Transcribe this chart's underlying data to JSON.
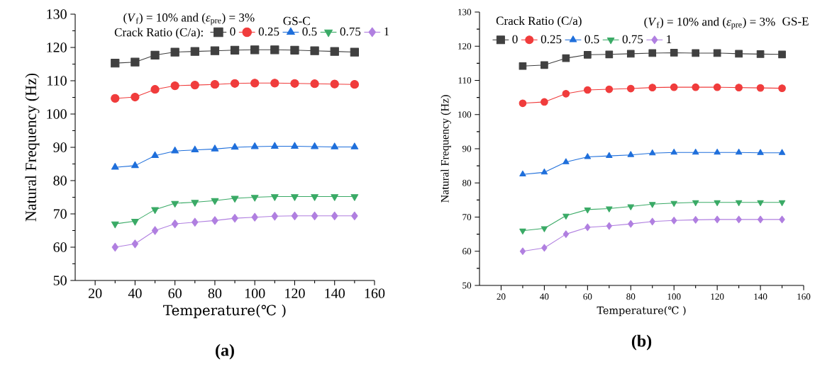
{
  "chart_data": [
    {
      "type": "line",
      "xlabel": "Temperature(℃ )",
      "ylabel": "Natural Frequency (Hz)",
      "legend_title": "Crack Ratio (C/a):",
      "legend": "top",
      "grid": false,
      "line_style": "solid",
      "annotations": [
        "(*V*$_{f}$) = 10%  and (*ε*$_{pre}$) = 3%",
        "GS-C",
        "**(a)**"
      ],
      "x": [
        30,
        40,
        50,
        60,
        70,
        80,
        90,
        100,
        110,
        120,
        130,
        140,
        150
      ],
      "xlim": [
        10,
        160
      ],
      "xticks": [
        20,
        40,
        60,
        80,
        100,
        120,
        140,
        160
      ],
      "ylim": [
        50,
        130
      ],
      "yticks": [
        50,
        60,
        70,
        80,
        90,
        100,
        110,
        120,
        130
      ],
      "series": [
        {
          "name": "0",
          "color": "#404040",
          "marker": "square",
          "values": [
            115.3,
            115.6,
            117.7,
            118.6,
            118.8,
            119.0,
            119.2,
            119.3,
            119.3,
            119.2,
            119.0,
            118.8,
            118.6
          ]
        },
        {
          "name": "0.25",
          "color": "#f03c3c",
          "marker": "circle",
          "values": [
            104.7,
            105.1,
            107.4,
            108.5,
            108.7,
            108.9,
            109.2,
            109.3,
            109.3,
            109.2,
            109.1,
            109.0,
            108.9
          ]
        },
        {
          "name": "0.5",
          "color": "#1f6fdb",
          "marker": "triangle",
          "values": [
            84.0,
            84.5,
            87.5,
            88.9,
            89.2,
            89.5,
            90.0,
            90.2,
            90.3,
            90.3,
            90.2,
            90.1,
            90.1
          ]
        },
        {
          "name": "0.75",
          "color": "#3aaa66",
          "marker": "triangle-down",
          "values": [
            67.0,
            67.8,
            71.3,
            73.2,
            73.5,
            74.0,
            74.7,
            75.0,
            75.2,
            75.2,
            75.2,
            75.2,
            75.2
          ]
        },
        {
          "name": "1",
          "color": "#b07fe0",
          "marker": "diamond",
          "values": [
            60.0,
            61.0,
            65.0,
            67.0,
            67.5,
            68.0,
            68.7,
            69.0,
            69.3,
            69.4,
            69.4,
            69.4,
            69.4
          ]
        }
      ]
    },
    {
      "type": "line",
      "xlabel": "Temperature(℃ )",
      "ylabel": "Natural Frequency (Hz)",
      "legend_title": "Crack Ratio (C/a)",
      "legend": "top",
      "grid": false,
      "line_style": "solid",
      "annotations": [
        "(*V*$_{f}$) = 10%  and  (*ε*$_{pre}$) = 3%",
        "GS-E",
        "**(b)**"
      ],
      "x": [
        30,
        40,
        50,
        60,
        70,
        80,
        90,
        100,
        110,
        120,
        130,
        140,
        150
      ],
      "xlim": [
        10,
        160
      ],
      "xticks": [
        20,
        40,
        60,
        80,
        100,
        120,
        140,
        160
      ],
      "ylim": [
        50,
        130
      ],
      "yticks": [
        50,
        60,
        70,
        80,
        90,
        100,
        110,
        120,
        130
      ],
      "series": [
        {
          "name": "0",
          "color": "#404040",
          "marker": "square",
          "values": [
            114.2,
            114.5,
            116.5,
            117.5,
            117.6,
            117.8,
            118.0,
            118.1,
            118.0,
            118.0,
            117.8,
            117.7,
            117.6
          ]
        },
        {
          "name": "0.25",
          "color": "#f03c3c",
          "marker": "circle",
          "values": [
            103.3,
            103.7,
            106.1,
            107.2,
            107.4,
            107.6,
            107.9,
            108.0,
            108.0,
            108.0,
            107.9,
            107.8,
            107.7
          ]
        },
        {
          "name": "0.5",
          "color": "#1f6fdb",
          "marker": "triangle",
          "values": [
            82.5,
            83.1,
            86.1,
            87.6,
            87.9,
            88.2,
            88.7,
            88.9,
            88.9,
            88.9,
            88.9,
            88.8,
            88.8
          ]
        },
        {
          "name": "0.75",
          "color": "#3aaa66",
          "marker": "triangle-down",
          "values": [
            66.0,
            66.7,
            70.4,
            72.2,
            72.5,
            73.1,
            73.8,
            74.1,
            74.3,
            74.3,
            74.3,
            74.3,
            74.3
          ]
        },
        {
          "name": "1",
          "color": "#b07fe0",
          "marker": "diamond",
          "values": [
            60.0,
            61.0,
            65.0,
            67.0,
            67.4,
            68.0,
            68.7,
            69.0,
            69.2,
            69.3,
            69.3,
            69.3,
            69.3
          ]
        }
      ]
    }
  ]
}
